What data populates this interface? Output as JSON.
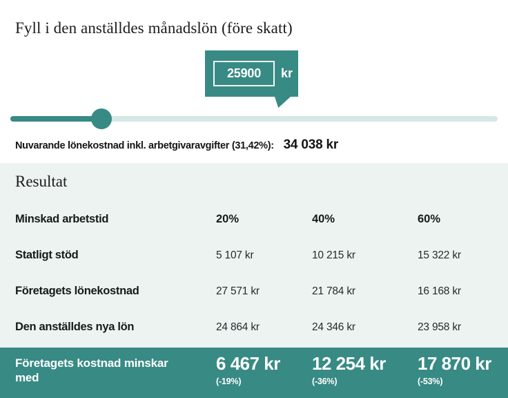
{
  "colors": {
    "teal": "#388a84",
    "slider_track": "#d6e7e5",
    "result_background": "#edf3f1",
    "text": "#1c1c1c",
    "white": "#ffffff"
  },
  "header": {
    "title": "Fyll i den anställdes månadslön (före skatt)"
  },
  "salary": {
    "value": "25900",
    "unit": "kr"
  },
  "slider": {
    "position_percent": 18.7
  },
  "current_cost": {
    "label": "Nuvarande lönekostnad inkl. arbetgivaravgifter (31,42%):",
    "value": "34 038 kr"
  },
  "result": {
    "heading": "Resultat",
    "header_label": "Minskad arbetstid",
    "columns": [
      "20%",
      "40%",
      "60%"
    ],
    "rows": [
      {
        "label": "Statligt stöd",
        "values": [
          "5 107 kr",
          "10 215 kr",
          "15 322 kr"
        ]
      },
      {
        "label": "Företagets lönekostnad",
        "values": [
          "27 571 kr",
          "21 784 kr",
          "16 168 kr"
        ]
      },
      {
        "label": "Den anställdes nya lön",
        "values": [
          "24 864 kr",
          "24 346 kr",
          "23 958 kr"
        ]
      }
    ],
    "footer": {
      "label": "Företagets kostnad minskar med",
      "values": [
        "6 467 kr",
        "12 254 kr",
        "17 870 kr"
      ],
      "percentages": [
        "(-19%)",
        "(-36%)",
        "(-53%)"
      ]
    }
  }
}
